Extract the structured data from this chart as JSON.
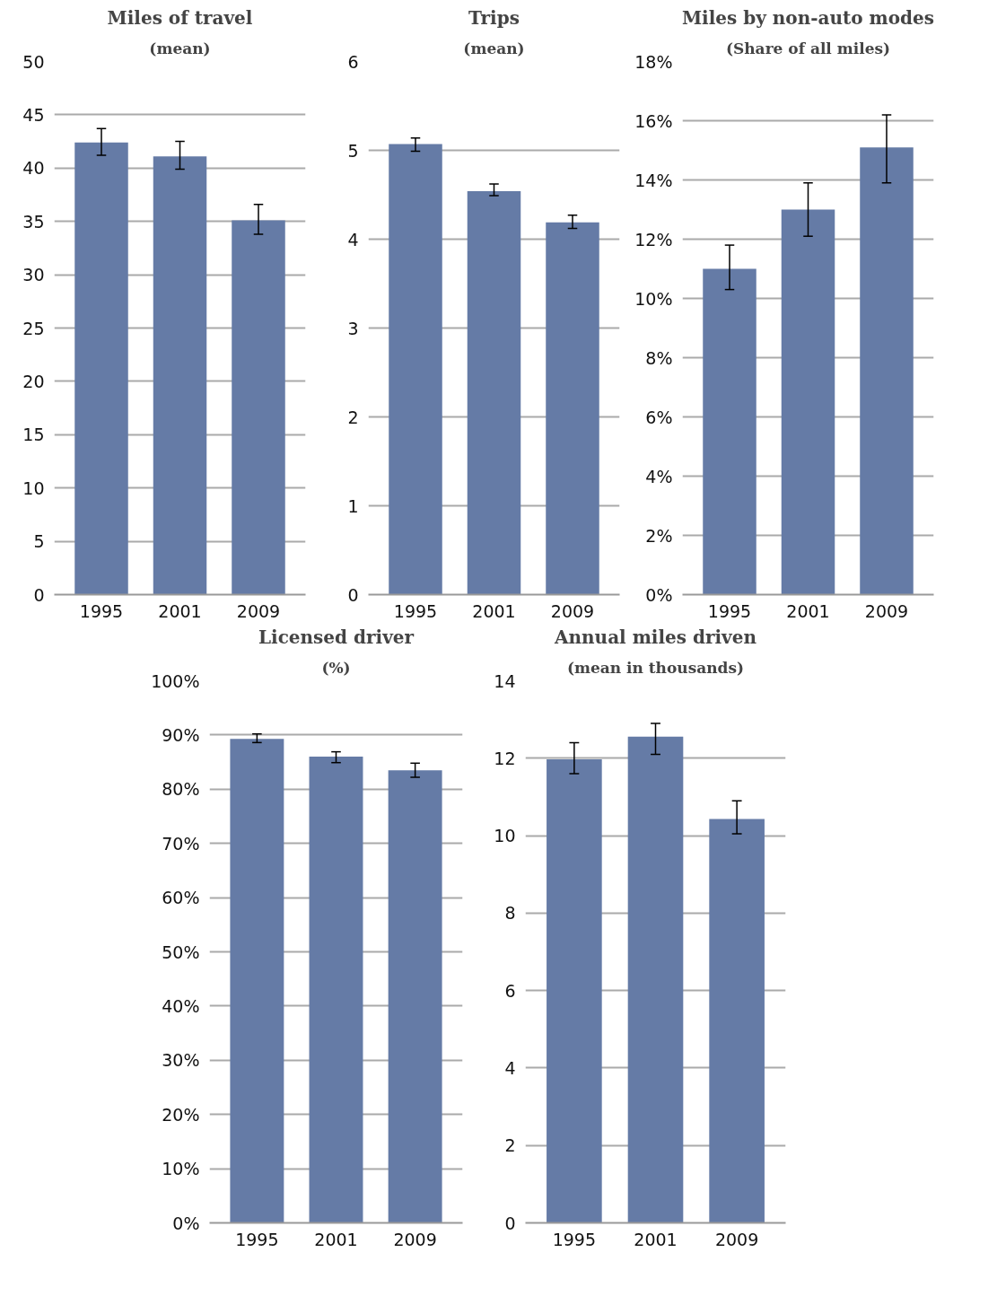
{
  "chart_data": [
    {
      "type": "bar",
      "title": "Miles of travel",
      "subtitle": "(mean)",
      "categories": [
        "1995",
        "2001",
        "2009"
      ],
      "color": "#657ba6",
      "values": [
        42.4,
        41.1,
        35.1
      ],
      "errors": [
        [
          41.2,
          43.7
        ],
        [
          39.9,
          42.5
        ],
        [
          33.8,
          36.6
        ]
      ],
      "ylim": [
        0,
        50
      ],
      "yticks": [
        0,
        5,
        10,
        15,
        20,
        25,
        30,
        35,
        40,
        45,
        50
      ],
      "grid": "y"
    },
    {
      "type": "bar",
      "title": "Trips",
      "subtitle": "(mean)",
      "categories": [
        "1995",
        "2001",
        "2009"
      ],
      "color": "#657ba6",
      "values": [
        5.07,
        4.54,
        4.19
      ],
      "errors": [
        [
          4.99,
          5.14
        ],
        [
          4.49,
          4.62
        ],
        [
          4.12,
          4.27
        ]
      ],
      "ylim": [
        0,
        6
      ],
      "yticks": [
        0,
        1,
        2,
        3,
        4,
        5,
        6
      ],
      "grid": "y"
    },
    {
      "type": "bar",
      "title": "Miles by non-auto modes",
      "subtitle": "(Share of all miles)",
      "categories": [
        "1995",
        "2001",
        "2009"
      ],
      "color": "#657ba6",
      "values": [
        11.0,
        13.0,
        15.1
      ],
      "errors": [
        [
          10.3,
          11.8
        ],
        [
          12.1,
          13.9
        ],
        [
          13.9,
          16.2
        ]
      ],
      "ylim": [
        0,
        18
      ],
      "yticks": [
        {
          "value": 0,
          "label": "0%"
        },
        {
          "value": 2,
          "label": "2%"
        },
        {
          "value": 4,
          "label": "4%"
        },
        {
          "value": 6,
          "label": "6%"
        },
        {
          "value": 8,
          "label": "8%"
        },
        {
          "value": 10,
          "label": "10%"
        },
        {
          "value": 12,
          "label": "12%"
        },
        {
          "value": 14,
          "label": "14%"
        },
        {
          "value": 16,
          "label": "16%"
        },
        {
          "value": 18,
          "label": "18%"
        }
      ],
      "grid": "y"
    },
    {
      "type": "bar",
      "title": "Licensed driver",
      "subtitle": "(%)",
      "categories": [
        "1995",
        "2001",
        "2009"
      ],
      "color": "#657ba6",
      "values": [
        89.3,
        86.0,
        83.5
      ],
      "errors": [
        [
          88.6,
          90.2
        ],
        [
          84.9,
          86.9
        ],
        [
          82.2,
          84.8
        ]
      ],
      "ylim": [
        0,
        100
      ],
      "yticks": [
        {
          "value": 0,
          "label": "0%"
        },
        {
          "value": 10,
          "label": "10%"
        },
        {
          "value": 20,
          "label": "20%"
        },
        {
          "value": 30,
          "label": "30%"
        },
        {
          "value": 40,
          "label": "40%"
        },
        {
          "value": 50,
          "label": "50%"
        },
        {
          "value": 60,
          "label": "60%"
        },
        {
          "value": 70,
          "label": "70%"
        },
        {
          "value": 80,
          "label": "80%"
        },
        {
          "value": 90,
          "label": "90%"
        },
        {
          "value": 100,
          "label": "100%"
        }
      ],
      "grid": "y"
    },
    {
      "type": "bar",
      "title": "Annual miles driven",
      "subtitle": "(mean in thousands)",
      "categories": [
        "1995",
        "2001",
        "2009"
      ],
      "color": "#657ba6",
      "values": [
        11.97,
        12.56,
        10.43
      ],
      "errors": [
        [
          11.6,
          12.4
        ],
        [
          12.1,
          12.9
        ],
        [
          10.05,
          10.9
        ]
      ],
      "ylim": [
        0,
        14
      ],
      "yticks": [
        0,
        2,
        4,
        6,
        8,
        10,
        12,
        14
      ],
      "grid": "y"
    }
  ]
}
